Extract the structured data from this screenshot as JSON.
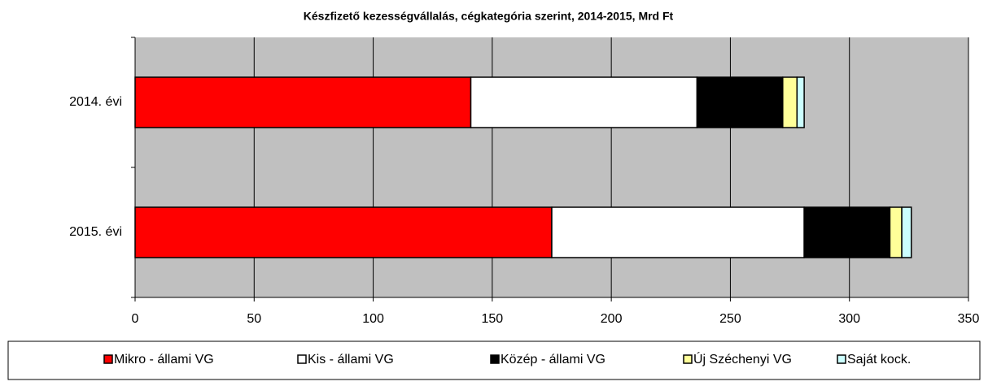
{
  "chart_data": {
    "type": "stacked_bar_horizontal",
    "title": "Készfizető kezességvállalás, cégkategória szerint, 2014-2015, Mrd Ft",
    "categories": [
      "2014. évi",
      "2015. évi"
    ],
    "series": [
      {
        "name": "Mikro - állami VG",
        "color": "#ff0000",
        "values": [
          141,
          175
        ]
      },
      {
        "name": "Kis - állami VG",
        "color": "#ffffff",
        "values": [
          95,
          106
        ]
      },
      {
        "name": "Közép - állami VG",
        "color": "#000000",
        "values": [
          36,
          36
        ]
      },
      {
        "name": "Új Széchenyi VG",
        "color": "#ffff99",
        "values": [
          6,
          5
        ]
      },
      {
        "name": "Saját kock.",
        "color": "#ccffff",
        "values": [
          3,
          4
        ]
      }
    ],
    "xlim": [
      0,
      350
    ],
    "xticks": [
      0,
      50,
      100,
      150,
      200,
      250,
      300,
      350
    ],
    "grid": true,
    "legend": "bottom"
  }
}
